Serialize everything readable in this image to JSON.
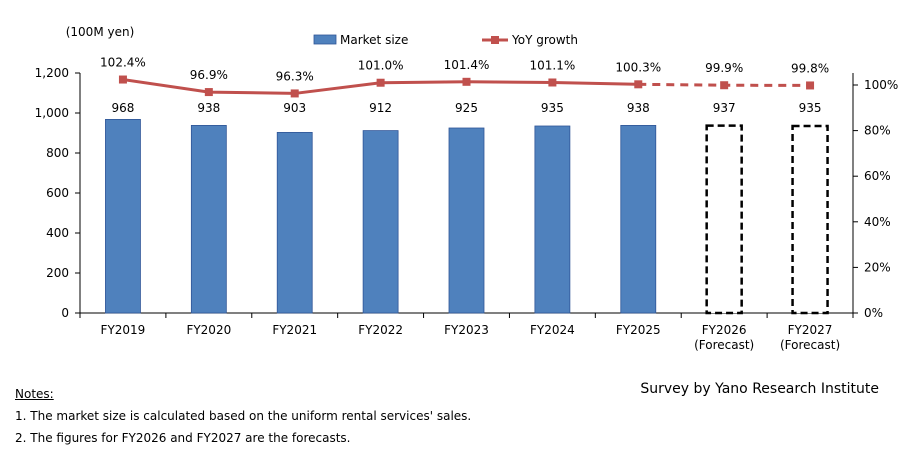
{
  "chart_data": {
    "type": "bar+line",
    "categories": [
      [
        "FY2019"
      ],
      [
        "FY2020"
      ],
      [
        "FY2021"
      ],
      [
        "FY2022"
      ],
      [
        "FY2023"
      ],
      [
        "FY2024"
      ],
      [
        "FY2025"
      ],
      [
        "FY2026",
        "(Forecast)"
      ],
      [
        "FY2027",
        "(Forecast)"
      ]
    ],
    "unit_label": "(100M yen)",
    "series": [
      {
        "name": "Market size",
        "type": "bar",
        "axis": "left",
        "color": "#4f81bd",
        "values": [
          968,
          938,
          903,
          912,
          925,
          935,
          938,
          937,
          935
        ],
        "value_labels": [
          "968",
          "938",
          "903",
          "912",
          "925",
          "935",
          "938",
          "937",
          "935"
        ],
        "forecast_from_index": 7
      },
      {
        "name": "YoY growth",
        "type": "line",
        "axis": "right",
        "color": "#c0504d",
        "values": [
          102.4,
          96.9,
          96.3,
          101.0,
          101.4,
          101.1,
          100.3,
          99.9,
          99.8
        ],
        "value_labels": [
          "102.4%",
          "96.9%",
          "96.3%",
          "101.0%",
          "101.4%",
          "101.1%",
          "100.3%",
          "99.9%",
          "99.8%"
        ],
        "forecast_from_index": 7
      }
    ],
    "y_left": {
      "min": 0,
      "max": 1200,
      "ticks": [
        "0",
        "200",
        "400",
        "600",
        "800",
        "1,000",
        "1,200"
      ]
    },
    "y_right": {
      "min": 0,
      "max": 100,
      "ticks": [
        "0%",
        "20%",
        "40%",
        "60%",
        "80%",
        "100%"
      ]
    },
    "grid": false,
    "legend_position": "top"
  },
  "notes": {
    "title": "Notes:",
    "items": [
      "1. The market size is calculated based on the uniform rental services' sales.",
      "2. The figures for FY2026 and FY2027 are the forecasts."
    ]
  },
  "source": "Survey by Yano Research Institute"
}
